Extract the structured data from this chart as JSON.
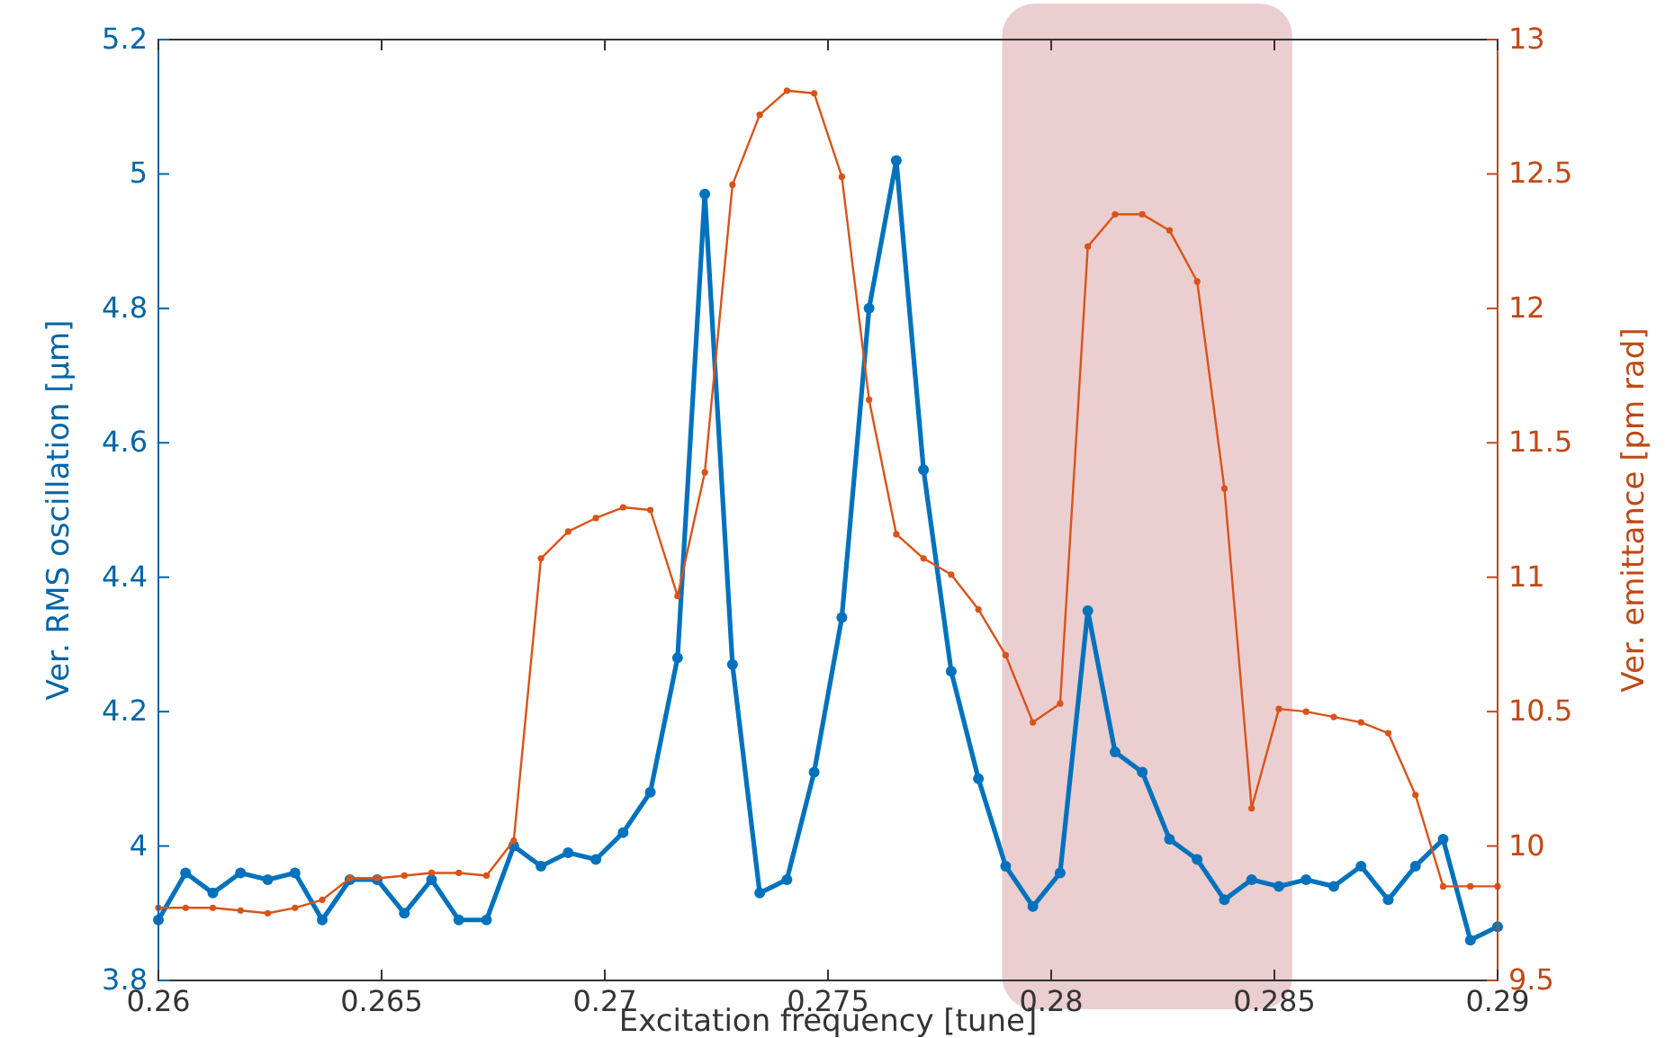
{
  "chart_data": {
    "type": "line",
    "xlabel": "Excitation frequency [tune]",
    "ylabel": "Ver. RMS oscillation [μm]",
    "y2label": "Ver. emittance [pm rad]",
    "x": [
      0.26,
      0.26061,
      0.26122,
      0.26184,
      0.26245,
      0.26306,
      0.26367,
      0.26429,
      0.2649,
      0.26551,
      0.26612,
      0.26673,
      0.26735,
      0.26796,
      0.26857,
      0.26918,
      0.2698,
      0.27041,
      0.27102,
      0.27163,
      0.27224,
      0.27286,
      0.27347,
      0.27408,
      0.27469,
      0.27531,
      0.27592,
      0.27653,
      0.27714,
      0.27776,
      0.27837,
      0.27898,
      0.27959,
      0.2802,
      0.28082,
      0.28143,
      0.28204,
      0.28265,
      0.28327,
      0.28388,
      0.28449,
      0.2851,
      0.28571,
      0.28633,
      0.28694,
      0.28755,
      0.28816,
      0.28878,
      0.28939,
      0.29
    ],
    "series": [
      {
        "color": "#0072bd",
        "values": [
          3.89,
          3.96,
          3.93,
          3.96,
          3.95,
          3.96,
          3.89,
          3.95,
          3.95,
          3.9,
          3.95,
          3.89,
          3.89,
          4.0,
          3.97,
          3.99,
          3.98,
          4.02,
          4.08,
          4.28,
          4.97,
          4.27,
          3.93,
          3.95,
          4.11,
          4.34,
          4.8,
          5.02,
          4.56,
          4.26,
          4.1,
          3.97,
          3.91,
          3.96,
          4.35,
          4.14,
          4.11,
          4.01,
          3.98,
          3.92,
          3.95,
          3.94,
          3.95,
          3.94,
          3.97,
          3.92,
          3.97,
          4.01,
          3.86,
          3.88
        ]
      },
      {
        "color": "#d95319",
        "axis": "y2",
        "values": [
          9.77,
          9.77,
          9.77,
          9.76,
          9.75,
          9.77,
          9.8,
          9.88,
          9.88,
          9.89,
          9.9,
          9.9,
          9.89,
          10.02,
          11.07,
          11.17,
          11.22,
          11.26,
          11.25,
          10.93,
          11.39,
          12.46,
          12.72,
          12.81,
          12.8,
          12.49,
          11.66,
          11.16,
          11.07,
          11.01,
          10.88,
          10.71,
          10.46,
          10.53,
          12.23,
          12.35,
          12.35,
          12.29,
          12.1,
          11.33,
          10.14,
          10.51,
          10.5,
          10.48,
          10.46,
          10.42,
          10.19,
          9.85,
          9.85,
          9.85
        ]
      }
    ],
    "xlim": [
      0.26,
      0.29
    ],
    "xticks": [
      0.26,
      0.265,
      0.27,
      0.275,
      0.28,
      0.285,
      0.29
    ],
    "ylim": [
      3.8,
      5.2
    ],
    "yticks": [
      3.8,
      4,
      4.2,
      4.4,
      4.6,
      4.8,
      5,
      5.2
    ],
    "y2lim": [
      9.5,
      13
    ],
    "y2ticks": [
      9.5,
      10,
      10.5,
      11,
      11.5,
      12,
      12.5,
      13
    ],
    "bands": [
      {
        "axis": "x",
        "from": 0.2789,
        "to": 0.2854,
        "color": "#e8c6c8"
      }
    ],
    "marker": "circle",
    "line_style": "solid",
    "grid": false
  }
}
